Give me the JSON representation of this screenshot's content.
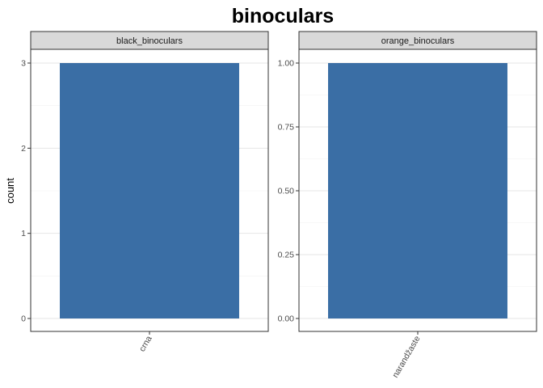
{
  "chart_data": {
    "type": "bar",
    "title": "binoculars",
    "ylabel": "count",
    "xlabel": "",
    "bar_color": "#3A6EA5",
    "strip_color": "#D9D9D9",
    "grid": true,
    "panels": [
      {
        "strip_label": "black_binoculars",
        "categories": [
          "crna"
        ],
        "values": [
          3
        ],
        "ylim": [
          0,
          3
        ],
        "yticks": [
          0,
          1,
          2,
          3
        ],
        "ytick_labels": [
          "0",
          "1",
          "2",
          "3"
        ]
      },
      {
        "strip_label": "orange_binoculars",
        "categories": [
          "narandžaste"
        ],
        "values": [
          1
        ],
        "ylim": [
          0,
          1
        ],
        "yticks": [
          0,
          0.25,
          0.5,
          0.75,
          1
        ],
        "ytick_labels": [
          "0.00",
          "0.25",
          "0.50",
          "0.75",
          "1.00"
        ]
      }
    ]
  }
}
